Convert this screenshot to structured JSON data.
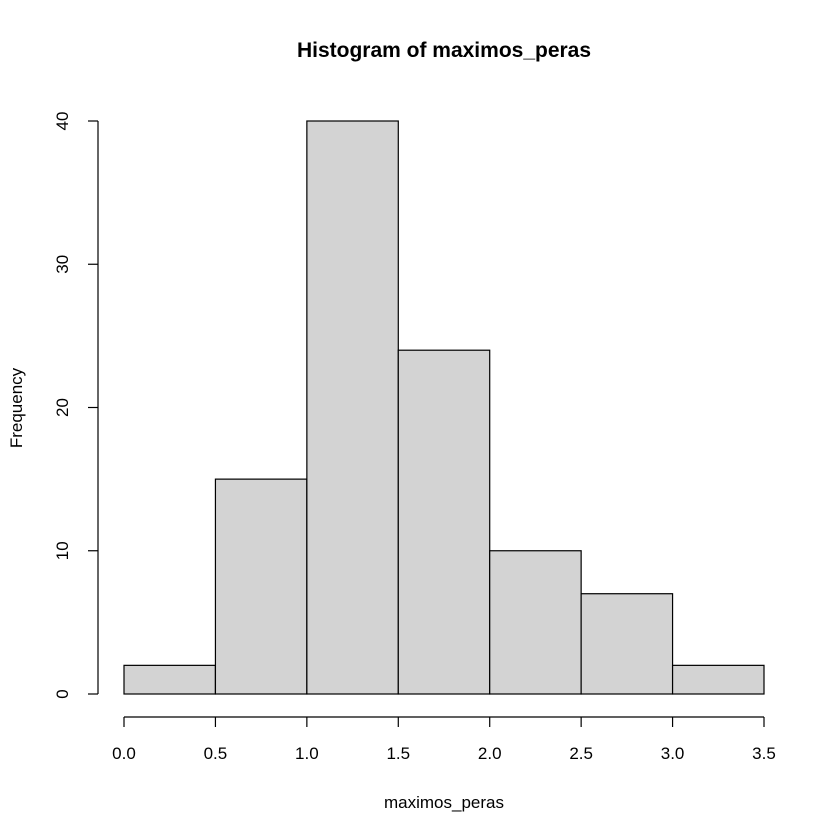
{
  "chart_data": {
    "type": "bar",
    "title": "Histogram of maximos_peras",
    "xlabel": "maximos_peras",
    "ylabel": "Frequency",
    "bins": [
      {
        "start": 0.0,
        "end": 0.5,
        "value": 2
      },
      {
        "start": 0.5,
        "end": 1.0,
        "value": 15
      },
      {
        "start": 1.0,
        "end": 1.5,
        "value": 40
      },
      {
        "start": 1.5,
        "end": 2.0,
        "value": 24
      },
      {
        "start": 2.0,
        "end": 2.5,
        "value": 10
      },
      {
        "start": 2.5,
        "end": 3.0,
        "value": 7
      },
      {
        "start": 3.0,
        "end": 3.5,
        "value": 2
      }
    ],
    "xlim": [
      0.0,
      3.5
    ],
    "ylim": [
      0,
      40
    ],
    "xticks": [
      0.0,
      0.5,
      1.0,
      1.5,
      2.0,
      2.5,
      3.0,
      3.5
    ],
    "xtick_labels": [
      "0.0",
      "0.5",
      "1.0",
      "1.5",
      "2.0",
      "2.5",
      "3.0",
      "3.5"
    ],
    "yticks": [
      0,
      10,
      20,
      30,
      40
    ],
    "ytick_labels": [
      "0",
      "10",
      "20",
      "30",
      "40"
    ],
    "bar_color": "#d3d3d3",
    "grid": false,
    "legend": "none"
  }
}
